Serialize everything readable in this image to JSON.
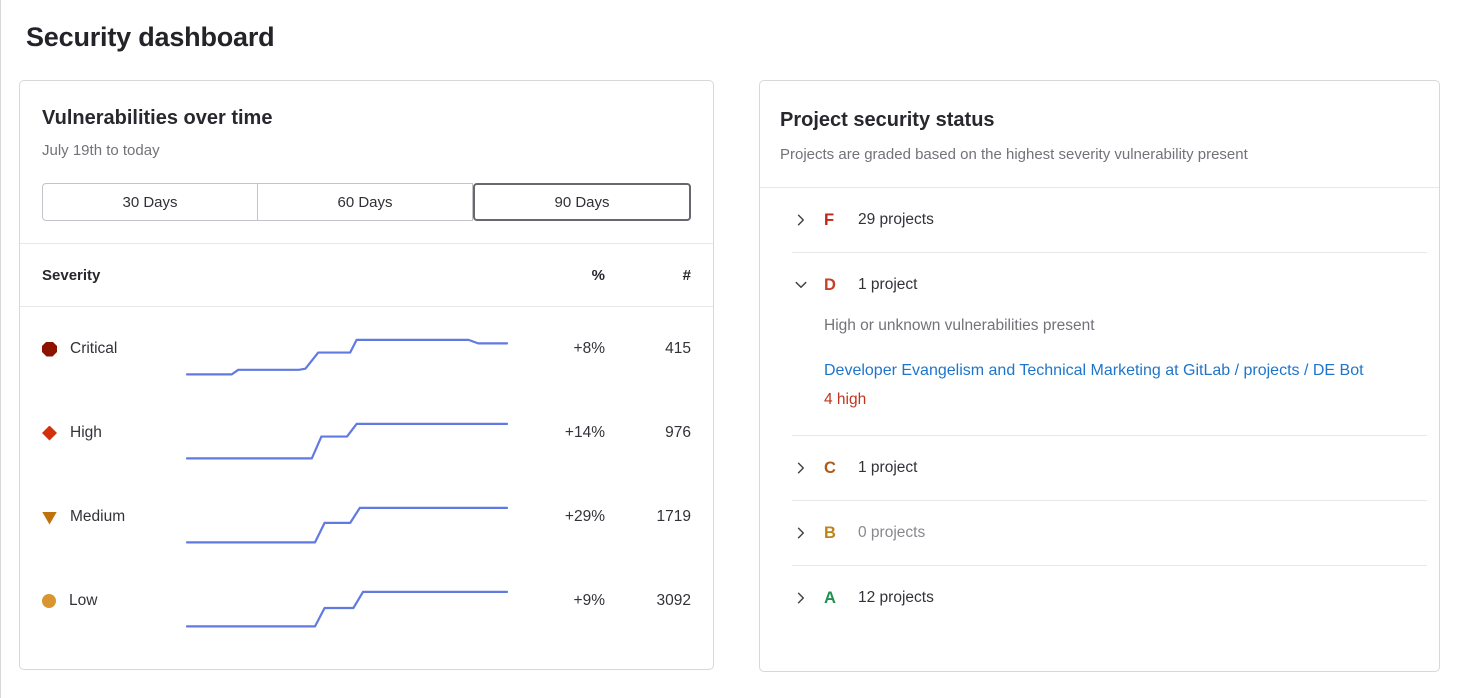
{
  "page": {
    "title": "Security dashboard"
  },
  "colors": {
    "sparkline": "#617ae2",
    "link_blue": "#1f75cb",
    "finding_red": "#c0351d"
  },
  "vulnerabilities_card": {
    "title": "Vulnerabilities over time",
    "subtitle": "July 19th to today",
    "range_buttons": [
      {
        "label": "30 Days",
        "selected": false
      },
      {
        "label": "60 Days",
        "selected": false
      },
      {
        "label": "90 Days",
        "selected": true
      }
    ],
    "table": {
      "headers": {
        "severity": "Severity",
        "percent": "%",
        "count": "#"
      },
      "rows": [
        {
          "label": "Critical",
          "key": "critical",
          "icon_name": "severity-critical-icon",
          "icon_color": "#8d1300",
          "percent_change": "+8%",
          "count": "415",
          "sparkline": [
            [
              0,
              36
            ],
            [
              14,
              36
            ],
            [
              16,
              32
            ],
            [
              35,
              32
            ],
            [
              37,
              31
            ],
            [
              41,
              17
            ],
            [
              51,
              17
            ],
            [
              53,
              6
            ],
            [
              88,
              6
            ],
            [
              91,
              9
            ],
            [
              100,
              9
            ]
          ]
        },
        {
          "label": "High",
          "key": "high",
          "icon_name": "severity-high-icon",
          "icon_color": "#d3310e",
          "percent_change": "+14%",
          "count": "976",
          "sparkline": [
            [
              0,
              36
            ],
            [
              39,
              36
            ],
            [
              42,
              17
            ],
            [
              50,
              17
            ],
            [
              53,
              6
            ],
            [
              100,
              6
            ]
          ]
        },
        {
          "label": "Medium",
          "key": "medium",
          "icon_name": "severity-medium-icon",
          "icon_color": "#bf7209",
          "percent_change": "+29%",
          "count": "1719",
          "sparkline": [
            [
              0,
              36
            ],
            [
              40,
              36
            ],
            [
              43,
              19
            ],
            [
              51,
              19
            ],
            [
              54,
              6
            ],
            [
              100,
              6
            ]
          ]
        },
        {
          "label": "Low",
          "key": "low",
          "icon_name": "severity-low-icon",
          "icon_color": "#d99530",
          "percent_change": "+9%",
          "count": "3092",
          "sparkline": [
            [
              0,
              36
            ],
            [
              40,
              36
            ],
            [
              43,
              20
            ],
            [
              52,
              20
            ],
            [
              55,
              6
            ],
            [
              100,
              6
            ]
          ]
        }
      ]
    }
  },
  "status_card": {
    "title": "Project security status",
    "subtitle": "Projects are graded based on the highest severity vulnerability present",
    "grades": [
      {
        "letter": "F",
        "color": "#c0271a",
        "count_label": "29 projects",
        "expanded": false,
        "muted": false
      },
      {
        "letter": "D",
        "color": "#c6402a",
        "count_label": "1 project",
        "expanded": true,
        "muted": false,
        "description": "High or unknown vulnerabilities present",
        "project_link": "Developer Evangelism and Technical Marketing at GitLab / projects / DE Bot",
        "finding": "4 high"
      },
      {
        "letter": "C",
        "color": "#b05c18",
        "count_label": "1 project",
        "expanded": false,
        "muted": false
      },
      {
        "letter": "B",
        "color": "#bf8417",
        "count_label": "0 projects",
        "expanded": false,
        "muted": true
      },
      {
        "letter": "A",
        "color": "#1f9150",
        "count_label": "12 projects",
        "expanded": false,
        "muted": false
      }
    ]
  }
}
